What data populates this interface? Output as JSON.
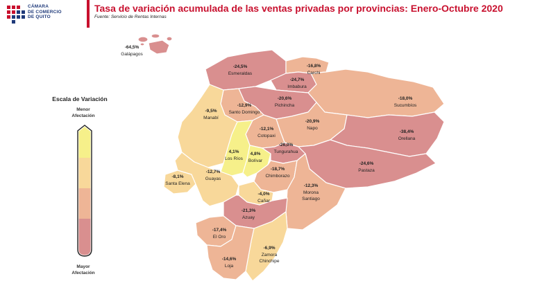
{
  "header": {
    "logo_text": "CÁMARA\nDE COMERCIO\nDE QUITO",
    "title": "Tasa de variación acumulada de las ventas privadas por provincias: Enero-Octubre 2020",
    "subtitle": "Fuente: Servicio de Rentas Internas"
  },
  "legend": {
    "title": "Escala de Variación",
    "top_label": "Menor\nAfectación",
    "bottom_label": "Mayor\nAfectación",
    "colors": [
      "#f6f08a",
      "#f8d89a",
      "#eeb596",
      "#d98f8f"
    ]
  },
  "colors": {
    "title": "#c8102e",
    "tier1": "#f6f08a",
    "tier2": "#f8d89a",
    "tier3": "#eeb596",
    "tier4": "#d98f8f",
    "galapagos": "#d98f8f"
  },
  "provinces": [
    {
      "id": "galapagos",
      "name": "Galápagos",
      "value": "-64,5%",
      "tier": 4
    },
    {
      "id": "esmeraldas",
      "name": "Esmeraldas",
      "value": "-24,5%",
      "tier": 4
    },
    {
      "id": "carchi",
      "name": "Carchi",
      "value": "-16,8%",
      "tier": 3
    },
    {
      "id": "imbabura",
      "name": "Imbabura",
      "value": "-24,7%",
      "tier": 4
    },
    {
      "id": "pichincha",
      "name": "Pichincha",
      "value": "-20,6%",
      "tier": 4
    },
    {
      "id": "santo_domingo",
      "name": "Santo Domingo",
      "value": "-12,9%",
      "tier": 3
    },
    {
      "id": "sucumbios",
      "name": "Sucumbíos",
      "value": "-18,0%",
      "tier": 3
    },
    {
      "id": "manabi",
      "name": "Manabí",
      "value": "-9,5%",
      "tier": 2
    },
    {
      "id": "napo",
      "name": "Napo",
      "value": "-20,9%",
      "tier": 3
    },
    {
      "id": "cotopaxi",
      "name": "Cotopaxi",
      "value": "-12,1%",
      "tier": 3
    },
    {
      "id": "orellana",
      "name": "Orellana",
      "value": "-38,4%",
      "tier": 4
    },
    {
      "id": "tungurahua",
      "name": "Tungurahua",
      "value": "-26,0%",
      "tier": 4
    },
    {
      "id": "los_rios",
      "name": "Los Ríos",
      "value": "4,1%",
      "tier": 1
    },
    {
      "id": "bolivar",
      "name": "Bolívar",
      "value": "4,8%",
      "tier": 1
    },
    {
      "id": "pastaza",
      "name": "Pastaza",
      "value": "-24,6%",
      "tier": 4
    },
    {
      "id": "santa_elena",
      "name": "Santa Elena",
      "value": "-8,1%",
      "tier": 2
    },
    {
      "id": "guayas",
      "name": "Guayas",
      "value": "-12,7%",
      "tier": 2
    },
    {
      "id": "chimborazo",
      "name": "Chimborazo",
      "value": "-18,7%",
      "tier": 3
    },
    {
      "id": "morona_santiago",
      "name": "Morona\nSantiago",
      "value": "-12,3%",
      "tier": 3
    },
    {
      "id": "canar",
      "name": "Cañar",
      "value": "-4,0%",
      "tier": 2
    },
    {
      "id": "azuay",
      "name": "Azuay",
      "value": "-21,3%",
      "tier": 4
    },
    {
      "id": "el_oro",
      "name": "El Oro",
      "value": "-17,4%",
      "tier": 3
    },
    {
      "id": "zamora_chinchipe",
      "name": "Zamora\nChinchipe",
      "value": "-6,9%",
      "tier": 2
    },
    {
      "id": "loja",
      "name": "Loja",
      "value": "-14,6%",
      "tier": 3
    }
  ]
}
